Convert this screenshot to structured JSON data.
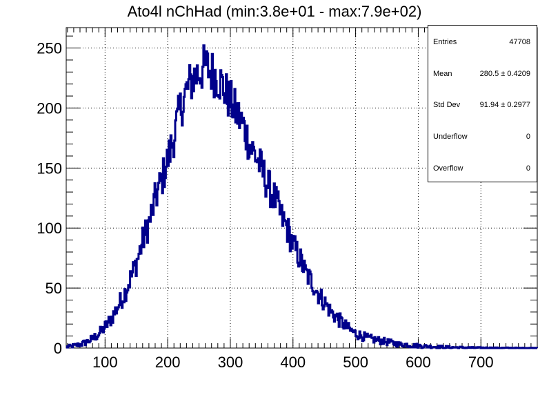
{
  "title": "Ato4l nChHad (min:3.8e+01 - max:7.9e+02)",
  "stats": {
    "rows": [
      {
        "label": "Entries",
        "value": "47708"
      },
      {
        "label": "Mean",
        "value": "280.5  ± 0.4209"
      },
      {
        "label": "Std Dev",
        "value": "91.94  ± 0.2977"
      },
      {
        "label": "Underflow",
        "value": "0"
      },
      {
        "label": "Overflow",
        "value": "0"
      }
    ]
  },
  "colors": {
    "line": "#00008b",
    "grid": "#000000",
    "axis": "#000000"
  },
  "chart_data": {
    "type": "line",
    "title": "Ato4l nChHad (min:3.8e+01 - max:7.9e+02)",
    "xlim": [
      38,
      790
    ],
    "ylim": [
      0,
      267
    ],
    "x_ticks": [
      100,
      200,
      300,
      400,
      500,
      600,
      700
    ],
    "y_ticks": [
      0,
      50,
      100,
      150,
      200,
      250
    ],
    "grid": true,
    "legend": "none",
    "series": [
      {
        "x": [
          40,
          50,
          60,
          70,
          80,
          90,
          100,
          110,
          120,
          130,
          140,
          150,
          160,
          170,
          180,
          190,
          200,
          210,
          220,
          230,
          240,
          250,
          260,
          270,
          280,
          290,
          300,
          310,
          320,
          330,
          340,
          350,
          360,
          370,
          380,
          390,
          400,
          410,
          420,
          430,
          440,
          450,
          460,
          470,
          480,
          490,
          500,
          510,
          520,
          530,
          540,
          550,
          560,
          570,
          580,
          590,
          600,
          610,
          620,
          630,
          640,
          650,
          660,
          670,
          680,
          690,
          700,
          720,
          740,
          760,
          780,
          790
        ],
        "values": [
          1,
          2,
          3,
          5,
          8,
          12,
          18,
          25,
          35,
          45,
          58,
          72,
          90,
          105,
          125,
          140,
          158,
          178,
          200,
          215,
          225,
          230,
          235,
          230,
          225,
          215,
          205,
          195,
          185,
          170,
          160,
          148,
          135,
          125,
          110,
          100,
          85,
          75,
          62,
          55,
          45,
          38,
          30,
          25,
          20,
          15,
          12,
          10,
          8,
          7,
          6,
          5,
          4,
          3,
          3,
          2,
          2,
          1.5,
          1.2,
          1,
          0.8,
          0.6,
          0.5,
          0.4,
          0.3,
          0.2,
          0.2,
          0.1,
          0.1,
          0.05,
          0.05,
          0
        ]
      }
    ]
  }
}
